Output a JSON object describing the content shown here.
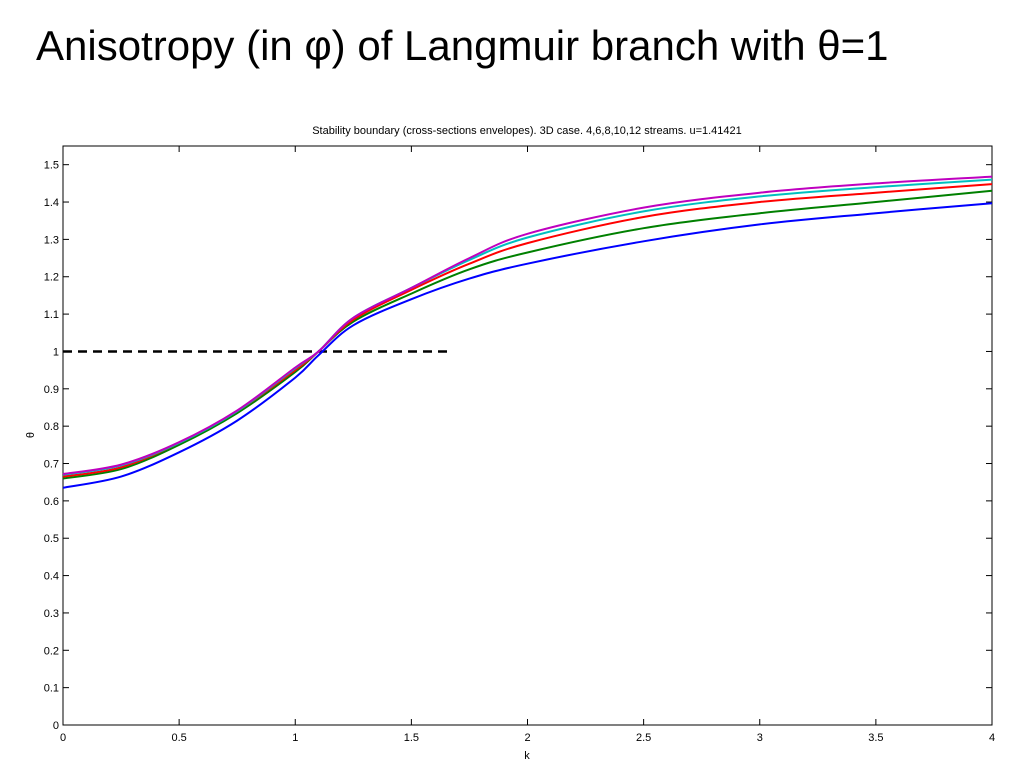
{
  "slide": {
    "title": "Anisotropy (in φ) of Langmuir branch with θ=1"
  },
  "chart_data": {
    "type": "line",
    "title": "Stability boundary (cross-sections envelopes). 3D case. 4,6,8,10,12 streams. u=1.41421",
    "xlabel": "k",
    "ylabel": "θ",
    "xlim": [
      0,
      4
    ],
    "ylim": [
      0,
      1.55
    ],
    "xticks": [
      0,
      0.5,
      1,
      1.5,
      2,
      2.5,
      3,
      3.5,
      4
    ],
    "xtick_labels": [
      "0",
      "0.5",
      "1",
      "1.5",
      "2",
      "2.5",
      "3",
      "3.5",
      "4"
    ],
    "yticks": [
      0,
      0.1,
      0.2,
      0.3,
      0.4,
      0.5,
      0.6,
      0.7,
      0.8,
      0.9,
      1,
      1.1,
      1.2,
      1.3,
      1.4,
      1.5
    ],
    "ytick_labels": [
      "0",
      "0.1",
      "0.2",
      "0.3",
      "0.4",
      "0.5",
      "0.6",
      "0.7",
      "0.8",
      "0.9",
      "1",
      "1.1",
      "1.2",
      "1.3",
      "1.4",
      "1.5"
    ],
    "grid": false,
    "reference_line": {
      "style": "dashed",
      "color": "#000000",
      "x": [
        0,
        1.66
      ],
      "y": [
        1,
        1
      ]
    },
    "x": [
      0,
      0.25,
      0.5,
      0.75,
      1.0,
      1.1,
      1.25,
      1.5,
      1.75,
      2.0,
      2.5,
      3.0,
      3.5,
      4.0
    ],
    "series": [
      {
        "color": "#0000ff",
        "values": [
          0.635,
          0.665,
          0.73,
          0.815,
          0.93,
          0.99,
          1.07,
          1.14,
          1.195,
          1.235,
          1.295,
          1.34,
          1.37,
          1.397
        ]
      },
      {
        "color": "#008000",
        "values": [
          0.66,
          0.685,
          0.75,
          0.835,
          0.945,
          1.0,
          1.08,
          1.155,
          1.22,
          1.265,
          1.33,
          1.37,
          1.4,
          1.43
        ]
      },
      {
        "color": "#ff0000",
        "values": [
          0.665,
          0.69,
          0.755,
          0.84,
          0.95,
          1.0,
          1.085,
          1.165,
          1.235,
          1.29,
          1.36,
          1.4,
          1.425,
          1.448
        ]
      },
      {
        "color": "#00bfbf",
        "values": [
          0.67,
          0.695,
          0.755,
          0.84,
          0.955,
          1.0,
          1.09,
          1.17,
          1.245,
          1.305,
          1.375,
          1.415,
          1.44,
          1.46
        ]
      },
      {
        "color": "#bf00bf",
        "values": [
          0.672,
          0.697,
          0.757,
          0.842,
          0.957,
          1.0,
          1.09,
          1.17,
          1.25,
          1.315,
          1.385,
          1.425,
          1.45,
          1.468
        ]
      }
    ]
  }
}
